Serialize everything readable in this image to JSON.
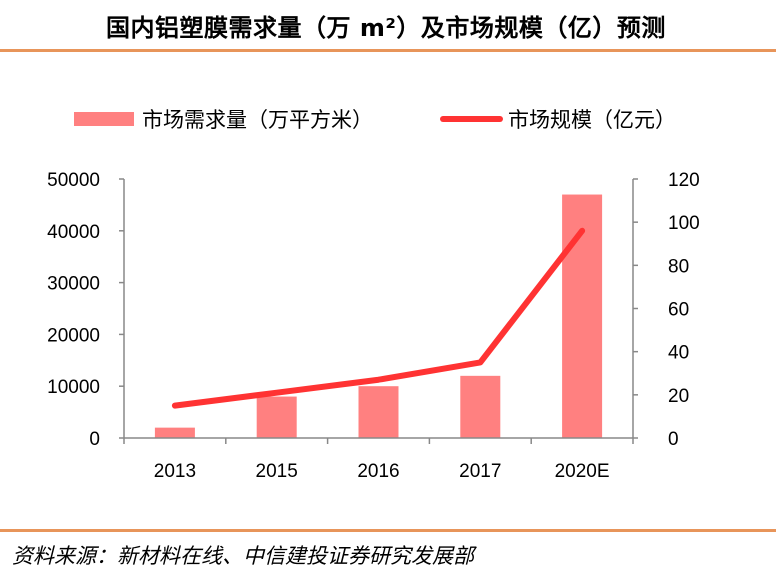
{
  "header": {
    "title": "国内铝塑膜需求量（万 m²）及市场规模（亿）预测"
  },
  "footer": {
    "source": "资料来源：新材料在线、中信建投证券研究发展部"
  },
  "colors": {
    "rule": "#e8955a",
    "bar": "#ff8080",
    "line": "#ff3333",
    "axis": "#888888"
  },
  "chart_data": {
    "type": "bar+line",
    "title": "国内铝塑膜需求量（万 m²）及市场规模（亿）预测",
    "categories": [
      "2013",
      "2015",
      "2016",
      "2017",
      "2020E"
    ],
    "series": [
      {
        "name": "市场需求量（万平方米）",
        "type": "bar",
        "axis": "left",
        "values": [
          2000,
          8000,
          10000,
          12000,
          47000
        ]
      },
      {
        "name": "市场规模（亿元）",
        "type": "line",
        "axis": "right",
        "values": [
          15,
          21,
          27,
          35,
          96
        ]
      }
    ],
    "y_left": {
      "lim": [
        0,
        50000
      ],
      "ticks": [
        "0",
        "10000",
        "20000",
        "30000",
        "40000",
        "50000"
      ]
    },
    "y_right": {
      "lim": [
        0,
        120
      ],
      "ticks": [
        "0",
        "20",
        "40",
        "60",
        "80",
        "100",
        "120"
      ]
    },
    "grid": false,
    "legend": "top"
  }
}
